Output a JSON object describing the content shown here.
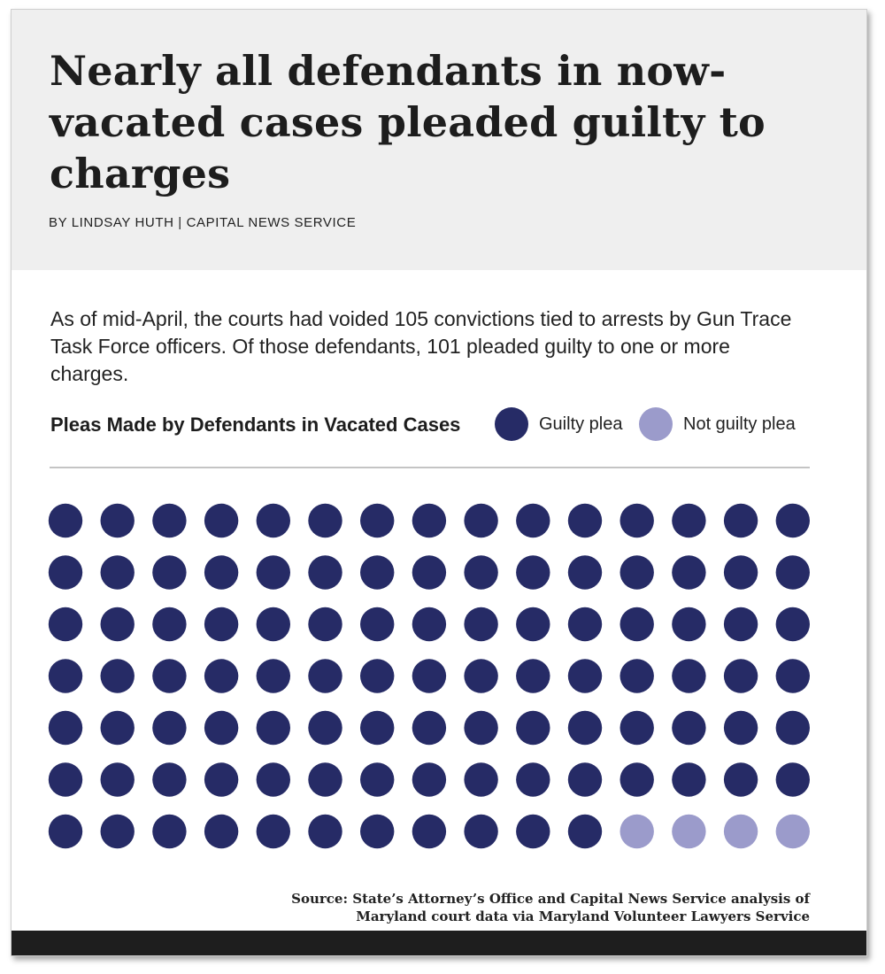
{
  "header": {
    "title": "Nearly all defendants in now-vacated cases pleaded guilty to charges",
    "byline": "BY LINDSAY HUTH | CAPITAL NEWS SERVICE"
  },
  "intro": "As of mid-April,  the courts had voided 105 convictions tied to arrests by Gun Trace Task Force officers. Of those defendants, 101 pleaded guilty to one or more charges.",
  "legend": {
    "items": [
      {
        "label": "Guilty plea",
        "color": "#262b66"
      },
      {
        "label": "Not guilty plea",
        "color": "#9b9bcb"
      }
    ]
  },
  "chart_data": {
    "type": "waffle",
    "title": "Pleas Made by Defendants in Vacated Cases",
    "total": 105,
    "rows": 7,
    "columns": 15,
    "series": [
      {
        "name": "Guilty plea",
        "value": 101,
        "color": "#262b66"
      },
      {
        "name": "Not guilty plea",
        "value": 4,
        "color": "#9b9bcb"
      }
    ]
  },
  "source": "Source: State’s Attorney’s Office and Capital News Service analysis of Maryland court data via Maryland Volunteer Lawyers Service",
  "colors": {
    "header_bg": "#efefef",
    "footer_bar": "#1e1e1e",
    "divider": "#c4c4c4"
  }
}
